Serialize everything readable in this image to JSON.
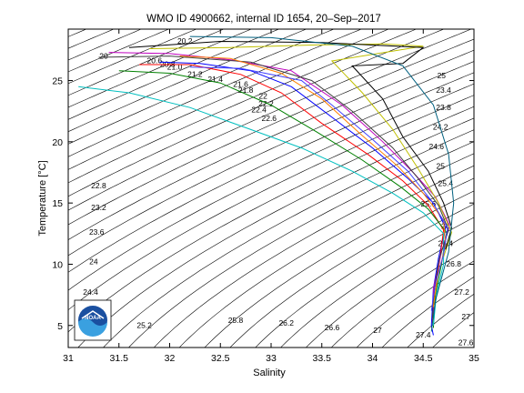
{
  "chart_data": {
    "type": "line",
    "title": "WMO ID 4900662, internal ID 1654, 20–Sep–2017",
    "xlabel": "Salinity",
    "ylabel": "Temperature [°C]",
    "xlim": [
      31,
      35
    ],
    "ylim": [
      3.2,
      29.2
    ],
    "xticks": [
      31,
      31.5,
      32,
      32.5,
      33,
      33.5,
      34,
      34.5,
      35
    ],
    "xtick_labels": [
      "31",
      "31.5",
      "32",
      "32.5",
      "33",
      "33.5",
      "34",
      "34.5",
      "35"
    ],
    "yticks": [
      5,
      10,
      15,
      20,
      25
    ],
    "ytick_labels": [
      "5",
      "10",
      "15",
      "20",
      "25"
    ],
    "grid": false,
    "legend": "none",
    "logo_text": "NOAA",
    "density_contours": {
      "sigma0_values": [
        20.0,
        20.2,
        20.4,
        20.6,
        20.8,
        21.0,
        21.2,
        21.4,
        21.6,
        21.8,
        22.0,
        22.2,
        22.4,
        22.6,
        22.8,
        23.0,
        23.2,
        23.4,
        23.6,
        23.8,
        24.0,
        24.2,
        24.4,
        24.6,
        24.8,
        25.0,
        25.2,
        25.4,
        25.6,
        25.8,
        26.0,
        26.2,
        26.4,
        26.6,
        26.8,
        27.0,
        27.2,
        27.4,
        27.6
      ],
      "labels": [
        {
          "text": "20",
          "s": 31.35,
          "t": 26.8
        },
        {
          "text": "20.2",
          "s": 32.15,
          "t": 28.0
        },
        {
          "text": "20.6",
          "s": 31.85,
          "t": 26.4
        },
        {
          "text": "20.8",
          "s": 31.98,
          "t": 26.1
        },
        {
          "text": "21.0",
          "s": 32.05,
          "t": 25.9
        },
        {
          "text": "21.2",
          "s": 32.25,
          "t": 25.3
        },
        {
          "text": "21.4",
          "s": 32.45,
          "t": 24.9
        },
        {
          "text": "21.6",
          "s": 32.7,
          "t": 24.5
        },
        {
          "text": "21.8",
          "s": 32.75,
          "t": 24.0
        },
        {
          "text": "22",
          "s": 32.92,
          "t": 23.5
        },
        {
          "text": "22.2",
          "s": 32.95,
          "t": 22.9
        },
        {
          "text": "22.4",
          "s": 32.88,
          "t": 22.4
        },
        {
          "text": "22.6",
          "s": 32.98,
          "t": 21.7
        },
        {
          "text": "22.8",
          "s": 31.3,
          "t": 16.2
        },
        {
          "text": "23.2",
          "s": 31.3,
          "t": 14.4
        },
        {
          "text": "23.6",
          "s": 31.28,
          "t": 12.4
        },
        {
          "text": "24",
          "s": 31.25,
          "t": 10.0
        },
        {
          "text": "24.4",
          "s": 31.22,
          "t": 7.5
        },
        {
          "text": "25",
          "s": 34.68,
          "t": 25.2
        },
        {
          "text": "23.4",
          "s": 34.7,
          "t": 24.0
        },
        {
          "text": "23.8",
          "s": 34.7,
          "t": 22.6
        },
        {
          "text": "24.2",
          "s": 34.67,
          "t": 21.0
        },
        {
          "text": "24.6",
          "s": 34.63,
          "t": 19.4
        },
        {
          "text": "25",
          "s": 34.67,
          "t": 17.8
        },
        {
          "text": "25.4",
          "s": 34.72,
          "t": 16.4
        },
        {
          "text": "25.6",
          "s": 34.55,
          "t": 14.7
        },
        {
          "text": "26",
          "s": 34.72,
          "t": 12.9
        },
        {
          "text": "26.4",
          "s": 34.72,
          "t": 11.5
        },
        {
          "text": "26.8",
          "s": 34.8,
          "t": 9.8
        },
        {
          "text": "27.2",
          "s": 34.88,
          "t": 7.5
        },
        {
          "text": "27",
          "s": 34.92,
          "t": 5.5
        },
        {
          "text": "27.4",
          "s": 34.5,
          "t": 4.0
        },
        {
          "text": "27.6",
          "s": 34.92,
          "t": 3.4
        },
        {
          "text": "25.2",
          "s": 31.75,
          "t": 4.8
        },
        {
          "text": "25.8",
          "s": 32.65,
          "t": 5.2
        },
        {
          "text": "26.2",
          "s": 33.15,
          "t": 5.0
        },
        {
          "text": "26.6",
          "s": 33.6,
          "t": 4.6
        },
        {
          "text": "27",
          "s": 34.05,
          "t": 4.4
        }
      ]
    },
    "series": [
      {
        "color": "#0000ff",
        "points": [
          [
            31.9,
            26.5
          ],
          [
            32.3,
            26.4
          ],
          [
            32.8,
            25.8
          ],
          [
            33.2,
            24.5
          ],
          [
            33.6,
            22.0
          ],
          [
            34.0,
            19.5
          ],
          [
            34.35,
            17.0
          ],
          [
            34.6,
            15.0
          ],
          [
            34.72,
            13.0
          ],
          [
            34.65,
            10.5
          ],
          [
            34.6,
            8.0
          ],
          [
            34.58,
            5.0
          ],
          [
            34.6,
            4.2
          ]
        ]
      },
      {
        "color": "#ff0000",
        "points": [
          [
            31.7,
            26.3
          ],
          [
            32.2,
            26.3
          ],
          [
            32.7,
            25.5
          ],
          [
            33.1,
            24.0
          ],
          [
            33.5,
            21.5
          ],
          [
            33.95,
            19.0
          ],
          [
            34.3,
            16.8
          ],
          [
            34.55,
            14.8
          ],
          [
            34.7,
            12.8
          ],
          [
            34.66,
            10.2
          ],
          [
            34.61,
            7.8
          ],
          [
            34.59,
            5.2
          ]
        ]
      },
      {
        "color": "#008000",
        "points": [
          [
            31.5,
            25.8
          ],
          [
            32.0,
            25.6
          ],
          [
            32.5,
            24.8
          ],
          [
            33.0,
            23.0
          ],
          [
            33.45,
            20.8
          ],
          [
            33.9,
            18.5
          ],
          [
            34.28,
            16.3
          ],
          [
            34.55,
            14.5
          ],
          [
            34.73,
            12.6
          ],
          [
            34.68,
            10.0
          ],
          [
            34.62,
            7.5
          ],
          [
            34.6,
            4.8
          ]
        ]
      },
      {
        "color": "#00bfbf",
        "points": [
          [
            31.1,
            24.5
          ],
          [
            31.6,
            24.0
          ],
          [
            32.2,
            22.8
          ],
          [
            32.8,
            21.0
          ],
          [
            33.3,
            19.5
          ],
          [
            33.8,
            17.6
          ],
          [
            34.2,
            15.8
          ],
          [
            34.5,
            14.2
          ],
          [
            34.7,
            12.5
          ],
          [
            34.7,
            10.0
          ],
          [
            34.63,
            7.5
          ],
          [
            34.6,
            5.0
          ]
        ]
      },
      {
        "color": "#bf00bf",
        "points": [
          [
            31.4,
            27.3
          ],
          [
            32.0,
            27.2
          ],
          [
            32.6,
            26.7
          ],
          [
            33.2,
            25.8
          ],
          [
            33.7,
            23.0
          ],
          [
            34.1,
            20.0
          ],
          [
            34.4,
            17.5
          ],
          [
            34.62,
            15.5
          ],
          [
            34.76,
            13.2
          ],
          [
            34.68,
            11.0
          ],
          [
            34.6,
            8.0
          ],
          [
            34.6,
            6.0
          ]
        ]
      },
      {
        "color": "#bfbf00",
        "points": [
          [
            31.8,
            27.6
          ],
          [
            32.6,
            27.7
          ],
          [
            33.4,
            27.9
          ],
          [
            34.1,
            28.0
          ],
          [
            34.5,
            27.8
          ],
          [
            33.6,
            26.6
          ],
          [
            33.9,
            24.0
          ],
          [
            34.2,
            21.0
          ],
          [
            34.45,
            17.8
          ],
          [
            34.65,
            15.0
          ],
          [
            34.78,
            12.6
          ],
          [
            34.7,
            10.6
          ]
        ]
      },
      {
        "color": "#404040",
        "points": [
          [
            31.3,
            26.9
          ],
          [
            32.0,
            27.0
          ],
          [
            32.8,
            26.5
          ],
          [
            33.4,
            25.0
          ],
          [
            33.8,
            22.5
          ],
          [
            34.2,
            19.5
          ],
          [
            34.45,
            17.0
          ],
          [
            34.65,
            14.8
          ],
          [
            34.75,
            12.8
          ],
          [
            34.66,
            10.5
          ],
          [
            34.61,
            8.0
          ],
          [
            34.59,
            5.6
          ]
        ]
      },
      {
        "color": "#ff8000",
        "points": [
          [
            32.1,
            27.0
          ],
          [
            32.6,
            26.8
          ],
          [
            33.1,
            25.6
          ],
          [
            33.5,
            23.5
          ],
          [
            33.9,
            20.5
          ],
          [
            34.25,
            18.0
          ],
          [
            34.5,
            15.8
          ],
          [
            34.7,
            13.6
          ],
          [
            34.72,
            11.5
          ],
          [
            34.64,
            9.0
          ],
          [
            34.6,
            6.5
          ]
        ]
      },
      {
        "color": "#4040ff",
        "points": [
          [
            32.2,
            26.1
          ],
          [
            32.7,
            26.0
          ],
          [
            33.3,
            25.0
          ],
          [
            33.6,
            23.0
          ],
          [
            34.0,
            20.2
          ],
          [
            34.35,
            17.6
          ],
          [
            34.58,
            15.2
          ],
          [
            34.74,
            13.0
          ],
          [
            34.7,
            10.8
          ],
          [
            34.62,
            8.4
          ],
          [
            34.58,
            6.2
          ]
        ]
      },
      {
        "color": "#000000",
        "points": [
          [
            31.6,
            27.7
          ],
          [
            32.5,
            28.2
          ],
          [
            33.5,
            28.1
          ],
          [
            34.5,
            27.7
          ],
          [
            34.3,
            26.4
          ],
          [
            33.8,
            26.2
          ],
          [
            34.1,
            23.5
          ],
          [
            34.3,
            20.4
          ],
          [
            34.55,
            17.6
          ],
          [
            34.7,
            15.0
          ],
          [
            34.78,
            13.0
          ],
          [
            34.72,
            11.2
          ]
        ]
      }
    ],
    "boundary_curve": {
      "color": "#00607f",
      "points": [
        [
          32.2,
          28.6
        ],
        [
          33.0,
          28.5
        ],
        [
          33.8,
          27.8
        ],
        [
          34.3,
          26.2
        ],
        [
          34.6,
          23.0
        ],
        [
          34.75,
          19.0
        ],
        [
          34.8,
          15.0
        ],
        [
          34.75,
          11.0
        ],
        [
          34.62,
          7.0
        ],
        [
          34.58,
          4.5
        ]
      ]
    }
  }
}
